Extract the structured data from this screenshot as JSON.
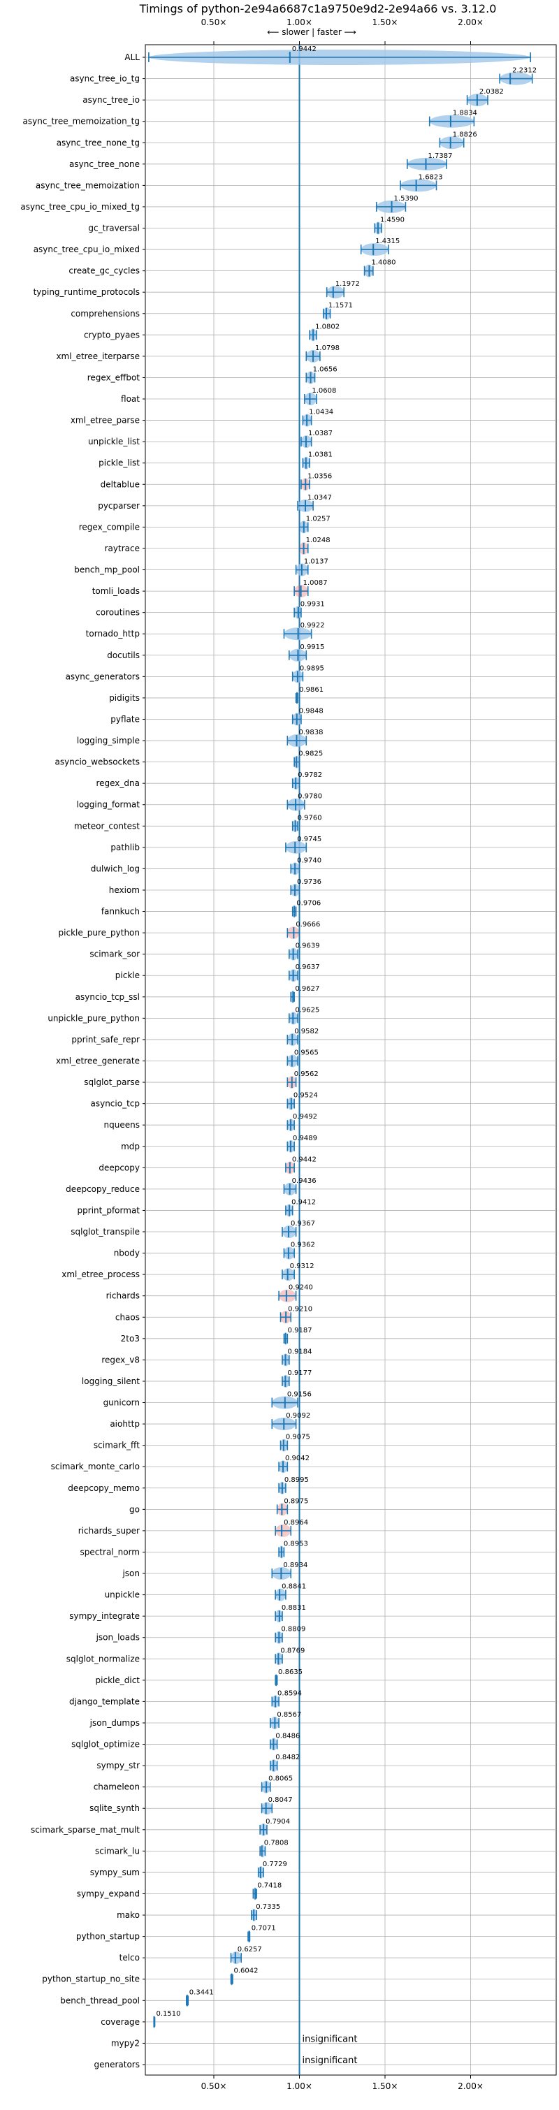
{
  "chart_data": {
    "type": "violin",
    "title": "Timings of python-2e94a6687c1a9750e9d2-2e94a66 vs. 3.12.0",
    "direction_label": "⟵ slower | faster ⟶",
    "xlim": [
      0.1,
      2.5
    ],
    "x_ticks": [
      0.5,
      1.0,
      1.5,
      2.0
    ],
    "x_tick_labels": [
      "0.50×",
      "1.00×",
      "1.50×",
      "2.00×"
    ],
    "reference_line": 1.0,
    "insignificant_label": "insignificant",
    "colors": {
      "violin": "#9fc5e8",
      "line": "#1f77b4",
      "highlight": "#e06666",
      "grid": "#b0b0b0"
    },
    "benchmarks": [
      {
        "name": "ALL",
        "value": 0.9442,
        "err": [
          0.12,
          2.35
        ]
      },
      {
        "name": "async_tree_io_tg",
        "value": 2.2312,
        "err": [
          2.17,
          2.36
        ]
      },
      {
        "name": "async_tree_io",
        "value": 2.0382,
        "err": [
          1.98,
          2.1
        ]
      },
      {
        "name": "async_tree_memoization_tg",
        "value": 1.8834,
        "err": [
          1.76,
          2.02
        ]
      },
      {
        "name": "async_tree_none_tg",
        "value": 1.8826,
        "err": [
          1.82,
          1.96
        ]
      },
      {
        "name": "async_tree_none",
        "value": 1.7387,
        "err": [
          1.63,
          1.86
        ]
      },
      {
        "name": "async_tree_memoization",
        "value": 1.6823,
        "err": [
          1.59,
          1.8
        ]
      },
      {
        "name": "async_tree_cpu_io_mixed_tg",
        "value": 1.539,
        "err": [
          1.45,
          1.62
        ]
      },
      {
        "name": "gc_traversal",
        "value": 1.459,
        "err": [
          1.44,
          1.48
        ]
      },
      {
        "name": "async_tree_cpu_io_mixed",
        "value": 1.4315,
        "err": [
          1.36,
          1.52
        ]
      },
      {
        "name": "create_gc_cycles",
        "value": 1.408,
        "err": [
          1.38,
          1.43
        ]
      },
      {
        "name": "typing_runtime_protocols",
        "value": 1.1972,
        "err": [
          1.16,
          1.26
        ]
      },
      {
        "name": "comprehensions",
        "value": 1.1571,
        "err": [
          1.14,
          1.18
        ]
      },
      {
        "name": "crypto_pyaes",
        "value": 1.0802,
        "err": [
          1.06,
          1.1
        ]
      },
      {
        "name": "xml_etree_iterparse",
        "value": 1.0798,
        "err": [
          1.04,
          1.12
        ]
      },
      {
        "name": "regex_effbot",
        "value": 1.0656,
        "err": [
          1.04,
          1.09
        ]
      },
      {
        "name": "float",
        "value": 1.0608,
        "err": [
          1.03,
          1.1
        ]
      },
      {
        "name": "xml_etree_parse",
        "value": 1.0434,
        "err": [
          1.02,
          1.07
        ]
      },
      {
        "name": "unpickle_list",
        "value": 1.0387,
        "err": [
          1.01,
          1.07
        ]
      },
      {
        "name": "pickle_list",
        "value": 1.0381,
        "err": [
          1.02,
          1.06
        ]
      },
      {
        "name": "deltablue",
        "value": 1.0356,
        "err": [
          1.01,
          1.06
        ],
        "highlight": true
      },
      {
        "name": "pycparser",
        "value": 1.0347,
        "err": [
          0.99,
          1.08
        ]
      },
      {
        "name": "regex_compile",
        "value": 1.0257,
        "err": [
          1.0,
          1.05
        ]
      },
      {
        "name": "raytrace",
        "value": 1.0248,
        "err": [
          1.0,
          1.05
        ],
        "highlight": true
      },
      {
        "name": "bench_mp_pool",
        "value": 1.0137,
        "err": [
          0.98,
          1.05
        ]
      },
      {
        "name": "tomli_loads",
        "value": 1.0087,
        "err": [
          0.97,
          1.05
        ],
        "highlight": true
      },
      {
        "name": "coroutines",
        "value": 0.9931,
        "err": [
          0.97,
          1.01
        ]
      },
      {
        "name": "tornado_http",
        "value": 0.9922,
        "err": [
          0.91,
          1.07
        ]
      },
      {
        "name": "docutils",
        "value": 0.9915,
        "err": [
          0.94,
          1.04
        ]
      },
      {
        "name": "async_generators",
        "value": 0.9895,
        "err": [
          0.96,
          1.02
        ]
      },
      {
        "name": "pidigits",
        "value": 0.9861,
        "err": [
          0.98,
          0.99
        ]
      },
      {
        "name": "pyflate",
        "value": 0.9848,
        "err": [
          0.96,
          1.01
        ]
      },
      {
        "name": "logging_simple",
        "value": 0.9838,
        "err": [
          0.93,
          1.04
        ]
      },
      {
        "name": "asyncio_websockets",
        "value": 0.9825,
        "err": [
          0.97,
          1.0
        ]
      },
      {
        "name": "regex_dna",
        "value": 0.9782,
        "err": [
          0.96,
          1.0
        ]
      },
      {
        "name": "logging_format",
        "value": 0.978,
        "err": [
          0.93,
          1.03
        ]
      },
      {
        "name": "meteor_contest",
        "value": 0.976,
        "err": [
          0.96,
          0.99
        ]
      },
      {
        "name": "pathlib",
        "value": 0.9745,
        "err": [
          0.92,
          1.04
        ]
      },
      {
        "name": "dulwich_log",
        "value": 0.974,
        "err": [
          0.95,
          1.0
        ]
      },
      {
        "name": "hexiom",
        "value": 0.9736,
        "err": [
          0.95,
          1.0
        ]
      },
      {
        "name": "fannkuch",
        "value": 0.9706,
        "err": [
          0.96,
          0.98
        ]
      },
      {
        "name": "pickle_pure_python",
        "value": 0.9666,
        "err": [
          0.93,
          1.0
        ],
        "highlight": true
      },
      {
        "name": "scimark_sor",
        "value": 0.9639,
        "err": [
          0.94,
          0.99
        ]
      },
      {
        "name": "pickle",
        "value": 0.9637,
        "err": [
          0.94,
          0.99
        ]
      },
      {
        "name": "asyncio_tcp_ssl",
        "value": 0.9627,
        "err": [
          0.95,
          0.97
        ]
      },
      {
        "name": "unpickle_pure_python",
        "value": 0.9625,
        "err": [
          0.94,
          0.99
        ]
      },
      {
        "name": "pprint_safe_repr",
        "value": 0.9582,
        "err": [
          0.93,
          0.99
        ]
      },
      {
        "name": "xml_etree_generate",
        "value": 0.9565,
        "err": [
          0.93,
          0.99
        ]
      },
      {
        "name": "sqlglot_parse",
        "value": 0.9562,
        "err": [
          0.93,
          0.98
        ],
        "highlight": true
      },
      {
        "name": "asyncio_tcp",
        "value": 0.9524,
        "err": [
          0.93,
          0.97
        ]
      },
      {
        "name": "nqueens",
        "value": 0.9492,
        "err": [
          0.93,
          0.97
        ]
      },
      {
        "name": "mdp",
        "value": 0.9489,
        "err": [
          0.93,
          0.97
        ]
      },
      {
        "name": "deepcopy",
        "value": 0.9442,
        "err": [
          0.92,
          0.97
        ],
        "highlight": true
      },
      {
        "name": "deepcopy_reduce",
        "value": 0.9436,
        "err": [
          0.91,
          0.98
        ]
      },
      {
        "name": "pprint_pformat",
        "value": 0.9412,
        "err": [
          0.92,
          0.96
        ]
      },
      {
        "name": "sqlglot_transpile",
        "value": 0.9367,
        "err": [
          0.9,
          0.98
        ]
      },
      {
        "name": "nbody",
        "value": 0.9362,
        "err": [
          0.91,
          0.97
        ]
      },
      {
        "name": "xml_etree_process",
        "value": 0.9312,
        "err": [
          0.9,
          0.97
        ]
      },
      {
        "name": "richards",
        "value": 0.924,
        "err": [
          0.88,
          0.98
        ],
        "highlight": true
      },
      {
        "name": "chaos",
        "value": 0.921,
        "err": [
          0.89,
          0.95
        ],
        "highlight": true
      },
      {
        "name": "2to3",
        "value": 0.9187,
        "err": [
          0.91,
          0.93
        ]
      },
      {
        "name": "regex_v8",
        "value": 0.9184,
        "err": [
          0.9,
          0.94
        ]
      },
      {
        "name": "logging_silent",
        "value": 0.9177,
        "err": [
          0.9,
          0.94
        ]
      },
      {
        "name": "gunicorn",
        "value": 0.9156,
        "err": [
          0.84,
          0.99
        ]
      },
      {
        "name": "aiohttp",
        "value": 0.9092,
        "err": [
          0.84,
          0.98
        ]
      },
      {
        "name": "scimark_fft",
        "value": 0.9075,
        "err": [
          0.89,
          0.93
        ]
      },
      {
        "name": "scimark_monte_carlo",
        "value": 0.9042,
        "err": [
          0.88,
          0.93
        ]
      },
      {
        "name": "deepcopy_memo",
        "value": 0.8995,
        "err": [
          0.88,
          0.92
        ]
      },
      {
        "name": "go",
        "value": 0.8975,
        "err": [
          0.87,
          0.93
        ],
        "highlight": true
      },
      {
        "name": "richards_super",
        "value": 0.8964,
        "err": [
          0.86,
          0.95
        ],
        "highlight": true
      },
      {
        "name": "spectral_norm",
        "value": 0.8953,
        "err": [
          0.88,
          0.91
        ]
      },
      {
        "name": "json",
        "value": 0.8934,
        "err": [
          0.84,
          0.95
        ]
      },
      {
        "name": "unpickle",
        "value": 0.8841,
        "err": [
          0.86,
          0.92
        ]
      },
      {
        "name": "sympy_integrate",
        "value": 0.8831,
        "err": [
          0.86,
          0.9
        ]
      },
      {
        "name": "json_loads",
        "value": 0.8809,
        "err": [
          0.86,
          0.9
        ]
      },
      {
        "name": "sqlglot_normalize",
        "value": 0.8769,
        "err": [
          0.86,
          0.9
        ]
      },
      {
        "name": "pickle_dict",
        "value": 0.8635,
        "err": [
          0.86,
          0.87
        ]
      },
      {
        "name": "django_template",
        "value": 0.8594,
        "err": [
          0.84,
          0.88
        ]
      },
      {
        "name": "json_dumps",
        "value": 0.8567,
        "err": [
          0.83,
          0.88
        ]
      },
      {
        "name": "sqlglot_optimize",
        "value": 0.8486,
        "err": [
          0.83,
          0.87
        ]
      },
      {
        "name": "sympy_str",
        "value": 0.8482,
        "err": [
          0.83,
          0.87
        ]
      },
      {
        "name": "chameleon",
        "value": 0.8065,
        "err": [
          0.78,
          0.83
        ]
      },
      {
        "name": "sqlite_synth",
        "value": 0.8047,
        "err": [
          0.78,
          0.84
        ]
      },
      {
        "name": "scimark_sparse_mat_mult",
        "value": 0.7904,
        "err": [
          0.77,
          0.81
        ]
      },
      {
        "name": "scimark_lu",
        "value": 0.7808,
        "err": [
          0.77,
          0.8
        ]
      },
      {
        "name": "sympy_sum",
        "value": 0.7729,
        "err": [
          0.76,
          0.79
        ]
      },
      {
        "name": "sympy_expand",
        "value": 0.7418,
        "err": [
          0.73,
          0.75
        ]
      },
      {
        "name": "mako",
        "value": 0.7335,
        "err": [
          0.72,
          0.75
        ]
      },
      {
        "name": "python_startup",
        "value": 0.7071,
        "err": [
          0.7,
          0.71
        ]
      },
      {
        "name": "telco",
        "value": 0.6257,
        "err": [
          0.6,
          0.66
        ]
      },
      {
        "name": "python_startup_no_site",
        "value": 0.6042,
        "err": [
          0.6,
          0.61
        ]
      },
      {
        "name": "bench_thread_pool",
        "value": 0.3441,
        "err": [
          0.34,
          0.35
        ]
      },
      {
        "name": "coverage",
        "value": 0.151,
        "err": [
          0.15,
          0.155
        ]
      },
      {
        "name": "mypy2",
        "value": null,
        "insignificant": true
      },
      {
        "name": "generators",
        "value": null,
        "insignificant": true
      }
    ]
  }
}
